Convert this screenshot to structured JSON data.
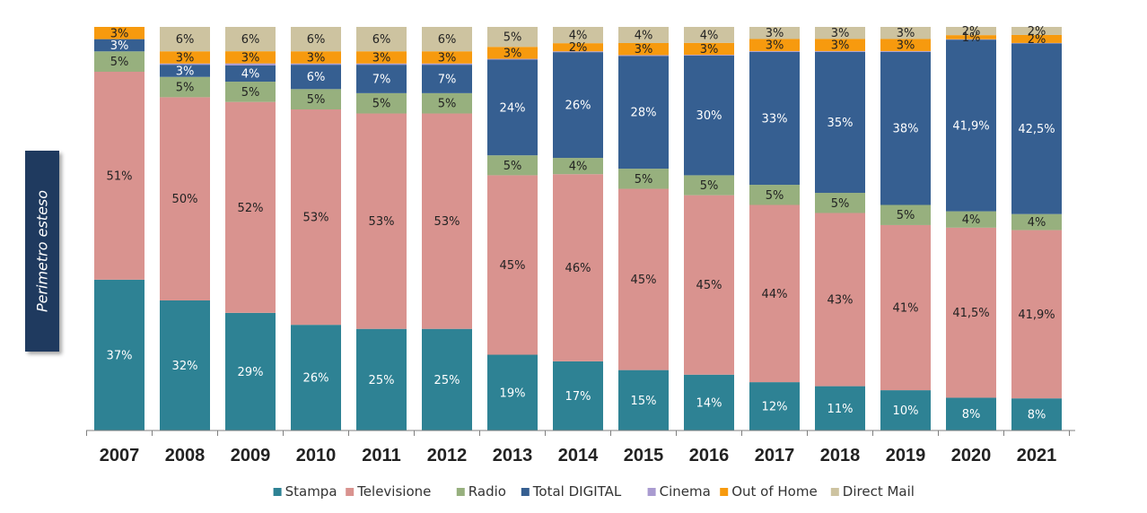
{
  "side_label": "Perimetro esteso",
  "chart_data": {
    "type": "bar",
    "stacked": true,
    "categories": [
      "2007",
      "2008",
      "2009",
      "2010",
      "2011",
      "2012",
      "2013",
      "2014",
      "2015",
      "2016",
      "2017",
      "2018",
      "2019",
      "2020",
      "2021"
    ],
    "ylim": [
      0,
      100
    ],
    "legend_position": "bottom",
    "grid": false,
    "series": [
      {
        "name": "Stampa",
        "color": "#2e8294",
        "label_color": "#ffffff",
        "values": [
          37,
          32,
          29,
          26,
          25,
          25,
          19,
          17,
          15,
          14,
          12,
          11,
          10,
          8,
          8
        ],
        "labels": [
          "37%",
          "32%",
          "29%",
          "26%",
          "25%",
          "25%",
          "19%",
          "17%",
          "15%",
          "14%",
          "12%",
          "11%",
          "10%",
          "8%",
          "8%"
        ]
      },
      {
        "name": "Televisione",
        "color": "#d9938f",
        "label_color": "#222222",
        "values": [
          51,
          50,
          52,
          53,
          53,
          53,
          45,
          46,
          45,
          45,
          44,
          43,
          41,
          41.5,
          41.9
        ],
        "labels": [
          "51%",
          "50%",
          "52%",
          "53%",
          "53%",
          "53%",
          "45%",
          "46%",
          "45%",
          "45%",
          "44%",
          "43%",
          "41%",
          "41,5%",
          "41,9%"
        ]
      },
      {
        "name": "Radio",
        "color": "#97b07e",
        "label_color": "#222222",
        "values": [
          5,
          5,
          5,
          5,
          5,
          5,
          5,
          4,
          5,
          5,
          5,
          5,
          5,
          4,
          4
        ],
        "labels": [
          "5%",
          "5%",
          "5%",
          "5%",
          "5%",
          "5%",
          "5%",
          "4%",
          "5%",
          "5%",
          "5%",
          "5%",
          "5%",
          "4%",
          "4%"
        ]
      },
      {
        "name": "Total DIGITAL",
        "color": "#365f91",
        "label_color": "#ffffff",
        "values": [
          3,
          3,
          4,
          6,
          7,
          7,
          24,
          26,
          28,
          30,
          33,
          35,
          38,
          41.9,
          42.5
        ],
        "labels": [
          "3%",
          "3%",
          "4%",
          "6%",
          "7%",
          "7%",
          "24%",
          "26%",
          "28%",
          "30%",
          "33%",
          "35%",
          "38%",
          "41,9%",
          "42,5%"
        ]
      },
      {
        "name": "Cinema",
        "color": "#a99bd0",
        "label_color": "#222222",
        "values": [
          0,
          0.3,
          0.5,
          0.3,
          0.3,
          0.3,
          0.2,
          0.2,
          0.2,
          0.2,
          0.2,
          0.2,
          0.2,
          0.1,
          0.1
        ],
        "labels": []
      },
      {
        "name": "Out of Home",
        "color": "#f79a0e",
        "label_color": "#222222",
        "values": [
          3,
          3,
          3,
          3,
          3,
          3,
          3,
          2,
          3,
          3,
          3,
          3,
          3,
          1,
          2
        ],
        "labels": [
          "3%",
          "3%",
          "3%",
          "3%",
          "3%",
          "3%",
          "3%",
          "2%",
          "3%",
          "3%",
          "3%",
          "3%",
          "3%",
          "1%",
          "2%"
        ]
      },
      {
        "name": "Direct Mail",
        "color": "#cdc3a0",
        "label_color": "#222222",
        "values": [
          0,
          6,
          6,
          6,
          6,
          6,
          5,
          4,
          4,
          4,
          3,
          3,
          3,
          2,
          2
        ],
        "labels": [
          "",
          "6%",
          "6%",
          "6%",
          "6%",
          "6%",
          "5%",
          "4%",
          "4%",
          "4%",
          "3%",
          "3%",
          "3%",
          "2%",
          "2%"
        ]
      }
    ]
  }
}
